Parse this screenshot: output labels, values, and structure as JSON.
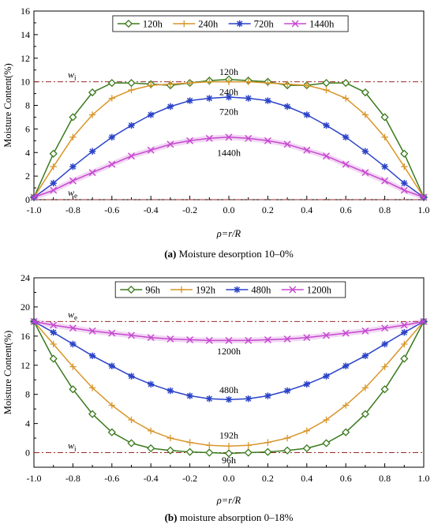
{
  "chart_data": [
    {
      "type": "line",
      "caption_prefix": "(a)",
      "caption_text": "Moisture desorption 10–0%",
      "xlabel": "ρ=r/R",
      "ylabel": "Moisture Content(%)",
      "xlim": [
        -1.0,
        1.0
      ],
      "ylim": [
        0,
        16
      ],
      "xticks": [
        "-1.0",
        "-0.8",
        "-0.6",
        "-0.4",
        "-0.2",
        "0.0",
        "0.2",
        "0.4",
        "0.6",
        "0.8",
        "1.0"
      ],
      "yticks": [
        "0",
        "2",
        "4",
        "6",
        "8",
        "10",
        "12",
        "14",
        "16"
      ],
      "x": [
        -1.0,
        -0.9,
        -0.8,
        -0.7,
        -0.6,
        -0.5,
        -0.4,
        -0.3,
        -0.2,
        -0.1,
        0.0,
        0.1,
        0.2,
        0.3,
        0.4,
        0.5,
        0.6,
        0.7,
        0.8,
        0.9,
        1.0
      ],
      "reference_lines": [
        {
          "label": "w",
          "subscript": "i",
          "y": 10
        },
        {
          "label": "w",
          "subscript": "e",
          "y": 0
        }
      ],
      "legend_position": "top-center",
      "series": [
        {
          "name": "120h",
          "color": "#3a7a1c",
          "marker": "diamond",
          "values": [
            0.2,
            3.9,
            7.0,
            9.1,
            9.9,
            9.9,
            9.8,
            9.7,
            9.9,
            10.1,
            10.2,
            10.1,
            10.0,
            9.7,
            9.7,
            9.9,
            9.9,
            9.1,
            7.0,
            3.9,
            0.2
          ]
        },
        {
          "name": "240h",
          "color": "#d9962a",
          "marker": "plus",
          "values": [
            0.2,
            2.8,
            5.3,
            7.2,
            8.6,
            9.3,
            9.7,
            9.8,
            9.9,
            10.0,
            10.0,
            10.0,
            9.9,
            9.8,
            9.7,
            9.3,
            8.6,
            7.2,
            5.3,
            2.8,
            0.2
          ]
        },
        {
          "name": "720h",
          "color": "#2b43c8",
          "marker": "star",
          "values": [
            0.2,
            1.4,
            2.8,
            4.1,
            5.3,
            6.3,
            7.2,
            7.9,
            8.4,
            8.6,
            8.7,
            8.6,
            8.4,
            7.9,
            7.2,
            6.3,
            5.3,
            4.1,
            2.8,
            1.4,
            0.2
          ]
        },
        {
          "name": "1440h",
          "color": "#c648cf",
          "marker": "x",
          "values": [
            0.2,
            0.8,
            1.6,
            2.3,
            3.0,
            3.7,
            4.2,
            4.7,
            5.0,
            5.2,
            5.3,
            5.2,
            5.0,
            4.7,
            4.2,
            3.7,
            3.0,
            2.3,
            1.6,
            0.8,
            0.2
          ]
        }
      ],
      "annotations": [
        {
          "text": "120h",
          "x": 0.0,
          "y": 10.85
        },
        {
          "text": "240h",
          "x": 0.0,
          "y": 9.15
        },
        {
          "text": "720h",
          "x": 0.0,
          "y": 7.45
        },
        {
          "text": "1440h",
          "x": 0.0,
          "y": 4.0
        }
      ]
    },
    {
      "type": "line",
      "caption_prefix": "(b)",
      "caption_text": "moisture absorption 0–18%",
      "xlabel": "ρ=r/R",
      "ylabel": "Moisture Content(%)",
      "xlim": [
        -1.0,
        1.0
      ],
      "ylim": [
        -2,
        24
      ],
      "xticks": [
        "-1.0",
        "-0.8",
        "-0.6",
        "-0.4",
        "-0.2",
        "0.0",
        "0.2",
        "0.4",
        "0.6",
        "0.8",
        "1.0"
      ],
      "yticks": [
        "0",
        "4",
        "8",
        "12",
        "16",
        "20",
        "24"
      ],
      "x": [
        -1.0,
        -0.9,
        -0.8,
        -0.7,
        -0.6,
        -0.5,
        -0.4,
        -0.3,
        -0.2,
        -0.1,
        0.0,
        0.1,
        0.2,
        0.3,
        0.4,
        0.5,
        0.6,
        0.7,
        0.8,
        0.9,
        1.0
      ],
      "reference_lines": [
        {
          "label": "w",
          "subscript": "e",
          "y": 18
        },
        {
          "label": "w",
          "subscript": "i",
          "y": 0
        }
      ],
      "legend_position": "top-center",
      "series": [
        {
          "name": "96h",
          "color": "#3a7a1c",
          "marker": "diamond",
          "values": [
            18.0,
            12.9,
            8.7,
            5.3,
            2.8,
            1.3,
            0.6,
            0.3,
            0.1,
            0.0,
            -0.1,
            0.0,
            0.1,
            0.3,
            0.6,
            1.3,
            2.8,
            5.3,
            8.7,
            12.9,
            18.0
          ]
        },
        {
          "name": "192h",
          "color": "#d9962a",
          "marker": "plus",
          "values": [
            18.0,
            14.9,
            11.8,
            8.9,
            6.5,
            4.5,
            3.0,
            2.0,
            1.4,
            1.0,
            0.9,
            1.0,
            1.4,
            2.0,
            3.0,
            4.5,
            6.5,
            8.9,
            11.8,
            14.9,
            18.0
          ]
        },
        {
          "name": "480h",
          "color": "#2b43c8",
          "marker": "star",
          "values": [
            18.0,
            16.5,
            14.9,
            13.3,
            11.9,
            10.5,
            9.4,
            8.5,
            7.8,
            7.4,
            7.3,
            7.4,
            7.8,
            8.5,
            9.4,
            10.5,
            11.9,
            13.3,
            14.9,
            16.5,
            18.0
          ]
        },
        {
          "name": "1200h",
          "color": "#c648cf",
          "marker": "x",
          "values": [
            18.0,
            17.5,
            17.1,
            16.7,
            16.4,
            16.1,
            15.8,
            15.6,
            15.5,
            15.4,
            15.4,
            15.4,
            15.5,
            15.6,
            15.8,
            16.1,
            16.4,
            16.7,
            17.1,
            17.5,
            18.0
          ]
        }
      ],
      "annotations": [
        {
          "text": "1200h",
          "x": 0.0,
          "y": 13.9
        },
        {
          "text": "480h",
          "x": 0.0,
          "y": 8.6
        },
        {
          "text": "192h",
          "x": 0.0,
          "y": 2.4
        },
        {
          "text": "96h",
          "x": 0.0,
          "y": -1.0
        }
      ]
    }
  ]
}
